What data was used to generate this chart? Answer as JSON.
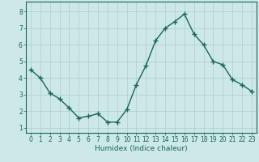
{
  "x": [
    0,
    1,
    2,
    3,
    4,
    5,
    6,
    7,
    8,
    9,
    10,
    11,
    12,
    13,
    14,
    15,
    16,
    17,
    18,
    19,
    20,
    21,
    22,
    23
  ],
  "y": [
    4.5,
    4.0,
    3.1,
    2.75,
    2.2,
    1.6,
    1.7,
    1.85,
    1.35,
    1.35,
    2.1,
    3.6,
    4.75,
    6.25,
    7.0,
    7.4,
    7.85,
    6.65,
    6.0,
    5.0,
    4.8,
    3.9,
    3.6,
    3.2
  ],
  "line_color": "#1a6655",
  "marker": "+",
  "marker_size": 4,
  "marker_lw": 1.0,
  "bg_color": "#cce8e8",
  "grid_color": "#b0cccc",
  "xlabel": "Humidex (Indice chaleur)",
  "ylim": [
    0.7,
    8.6
  ],
  "xlim": [
    -0.5,
    23.5
  ],
  "yticks": [
    1,
    2,
    3,
    4,
    5,
    6,
    7,
    8
  ],
  "xticks": [
    0,
    1,
    2,
    3,
    4,
    5,
    6,
    7,
    8,
    9,
    10,
    11,
    12,
    13,
    14,
    15,
    16,
    17,
    18,
    19,
    20,
    21,
    22,
    23
  ],
  "xlabel_fontsize": 6.5,
  "tick_fontsize": 5.5,
  "linewidth": 1.0
}
